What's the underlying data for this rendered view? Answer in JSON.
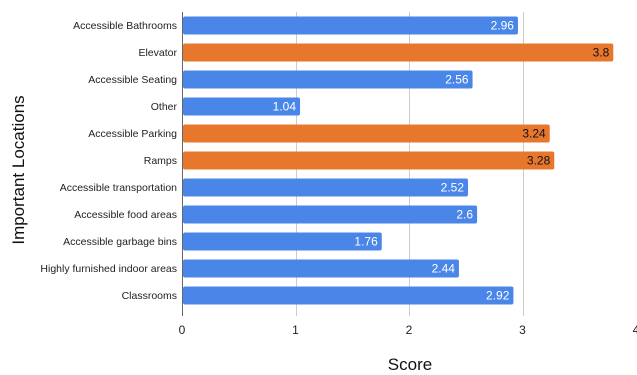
{
  "chart_data": {
    "type": "bar",
    "orientation": "horizontal",
    "title": "",
    "xlabel": "Score",
    "ylabel": "Important Locations",
    "xlim": [
      0,
      4
    ],
    "xticks": [
      0,
      1,
      2,
      3,
      4
    ],
    "grid": true,
    "legend": "none",
    "categories": [
      "Accessible Bathrooms",
      "Elevator",
      "Accessible Seating",
      "Other",
      "Accessible Parking",
      "Ramps",
      "Accessible transportation",
      "Accessible food areas",
      "Accessible garbage bins",
      "Highly furnished indoor areas",
      "Classrooms"
    ],
    "values": [
      2.96,
      3.8,
      2.56,
      1.04,
      3.24,
      3.28,
      2.52,
      2.6,
      1.76,
      2.44,
      2.92
    ],
    "value_labels": [
      "2.96",
      "3.8",
      "2.56",
      "1.04",
      "3.24",
      "3.28",
      "2.52",
      "2.6",
      "1.76",
      "2.44",
      "2.92"
    ],
    "bar_colors": [
      "#4a86e8",
      "#e8772e",
      "#4a86e8",
      "#4a86e8",
      "#e8772e",
      "#e8772e",
      "#4a86e8",
      "#4a86e8",
      "#4a86e8",
      "#4a86e8",
      "#4a86e8"
    ],
    "label_colors": [
      "#ffffff",
      "#111111",
      "#ffffff",
      "#ffffff",
      "#111111",
      "#111111",
      "#ffffff",
      "#ffffff",
      "#ffffff",
      "#ffffff",
      "#ffffff"
    ]
  },
  "colors": {
    "blue": "#4a86e8",
    "orange": "#e8772e",
    "grid": "#cccccc"
  }
}
